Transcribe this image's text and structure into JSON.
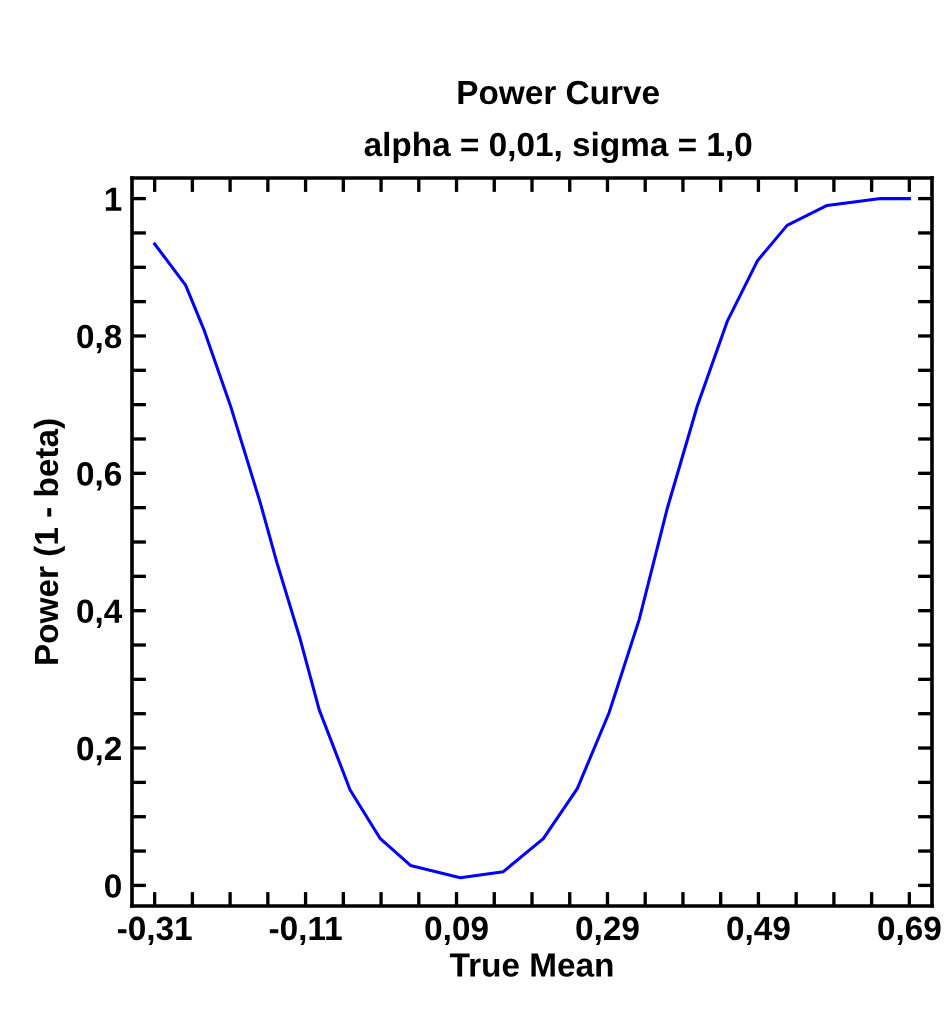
{
  "chart_data": {
    "type": "line",
    "title": "Power Curve",
    "subtitle": "alpha = 0,01, sigma = 1,0",
    "xlabel": "True Mean",
    "ylabel": "Power (1 - beta)",
    "x": [
      -0.31,
      -0.269,
      -0.245,
      -0.21,
      -0.17,
      -0.148,
      -0.117,
      -0.092,
      -0.051,
      -0.011,
      0.029,
      0.095,
      0.152,
      0.205,
      0.25,
      0.292,
      0.332,
      0.369,
      0.409,
      0.449,
      0.489,
      0.528,
      0.581,
      0.652,
      0.69
    ],
    "series": [
      {
        "color": "#0000ff",
        "values": [
          0.934,
          0.874,
          0.81,
          0.7,
          0.557,
          0.47,
          0.358,
          0.256,
          0.139,
          0.068,
          0.029,
          0.011,
          0.02,
          0.068,
          0.141,
          0.251,
          0.387,
          0.548,
          0.698,
          0.822,
          0.91,
          0.961,
          0.99,
          1.0,
          1.0
        ]
      }
    ],
    "xlim": [
      -0.34,
      0.72
    ],
    "ylim": [
      -0.03,
      1.03
    ],
    "xticks": [
      {
        "value": -0.31,
        "label": "-0,31"
      },
      {
        "value": -0.26,
        "label": null
      },
      {
        "value": -0.21,
        "label": null
      },
      {
        "value": -0.16,
        "label": null
      },
      {
        "value": -0.11,
        "label": "-0,11"
      },
      {
        "value": -0.06,
        "label": null
      },
      {
        "value": -0.01,
        "label": null
      },
      {
        "value": 0.04,
        "label": null
      },
      {
        "value": 0.09,
        "label": "0,09"
      },
      {
        "value": 0.14,
        "label": null
      },
      {
        "value": 0.19,
        "label": null
      },
      {
        "value": 0.24,
        "label": null
      },
      {
        "value": 0.29,
        "label": "0,29"
      },
      {
        "value": 0.34,
        "label": null
      },
      {
        "value": 0.39,
        "label": null
      },
      {
        "value": 0.44,
        "label": null
      },
      {
        "value": 0.49,
        "label": "0,49"
      },
      {
        "value": 0.54,
        "label": null
      },
      {
        "value": 0.59,
        "label": null
      },
      {
        "value": 0.64,
        "label": null
      },
      {
        "value": 0.69,
        "label": "0,69"
      }
    ],
    "yticks": [
      0,
      {
        "value": 0.05,
        "label": null
      },
      {
        "value": 0.1,
        "label": null
      },
      {
        "value": 0.15,
        "label": null
      },
      {
        "value": 0.2,
        "label": "0,2"
      },
      {
        "value": 0.25,
        "label": null
      },
      {
        "value": 0.3,
        "label": null
      },
      {
        "value": 0.35,
        "label": null
      },
      {
        "value": 0.4,
        "label": "0,4"
      },
      {
        "value": 0.45,
        "label": null
      },
      {
        "value": 0.5,
        "label": null
      },
      {
        "value": 0.55,
        "label": null
      },
      {
        "value": 0.6,
        "label": "0,6"
      },
      {
        "value": 0.65,
        "label": null
      },
      {
        "value": 0.7,
        "label": null
      },
      {
        "value": 0.75,
        "label": null
      },
      {
        "value": 0.8,
        "label": "0,8"
      },
      {
        "value": 0.85,
        "label": null
      },
      {
        "value": 0.9,
        "label": null
      },
      {
        "value": 0.95,
        "label": null
      },
      1
    ],
    "grid": false,
    "legend": false,
    "marker": "none",
    "line_style": "solid"
  }
}
